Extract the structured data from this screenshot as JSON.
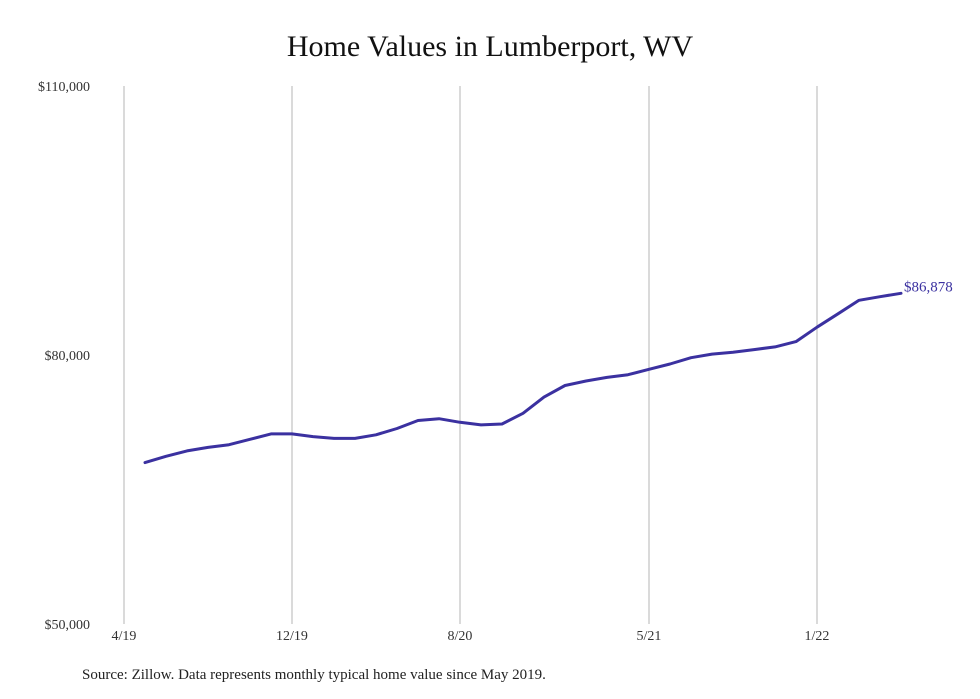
{
  "chart_data": {
    "type": "line",
    "title": "Home Values in Lumberport, WV",
    "xlabel": "",
    "ylabel": "",
    "ylim": [
      50000,
      110000
    ],
    "y_ticks": [
      "$110,000",
      "$80,000",
      "$50,000"
    ],
    "y_tick_values": [
      110000,
      80000,
      50000
    ],
    "x_tick_labels": [
      "4/19",
      "12/19",
      "8/20",
      "5/21",
      "1/22"
    ],
    "x_tick_months": [
      "2019-04",
      "2019-12",
      "2020-08",
      "2021-05",
      "2022-01"
    ],
    "grid": "vertical",
    "series": [
      {
        "months": [
          "2019-05",
          "2019-06",
          "2019-07",
          "2019-08",
          "2019-09",
          "2019-10",
          "2019-11",
          "2019-12",
          "2020-01",
          "2020-02",
          "2020-03",
          "2020-04",
          "2020-05",
          "2020-06",
          "2020-07",
          "2020-08",
          "2020-09",
          "2020-10",
          "2020-11",
          "2020-12",
          "2021-01",
          "2021-02",
          "2021-03",
          "2021-04",
          "2021-05",
          "2021-06",
          "2021-07",
          "2021-08",
          "2021-09",
          "2021-10",
          "2021-11",
          "2021-12",
          "2022-01",
          "2022-02",
          "2022-03",
          "2022-04",
          "2022-05"
        ],
        "values": [
          68000,
          68700,
          69300,
          69700,
          70000,
          70600,
          71200,
          71200,
          70900,
          70700,
          70700,
          71100,
          71800,
          72700,
          72900,
          72500,
          72200,
          72300,
          73500,
          75300,
          76600,
          77100,
          77500,
          77800,
          78400,
          79000,
          79700,
          80100,
          80300,
          80600,
          80900,
          81500,
          83100,
          84600,
          86100,
          86500,
          86878
        ],
        "color": "#3b31a0"
      }
    ],
    "end_label": "$86,878"
  },
  "source": "Source: Zillow. Data represents monthly typical home value since May 2019."
}
